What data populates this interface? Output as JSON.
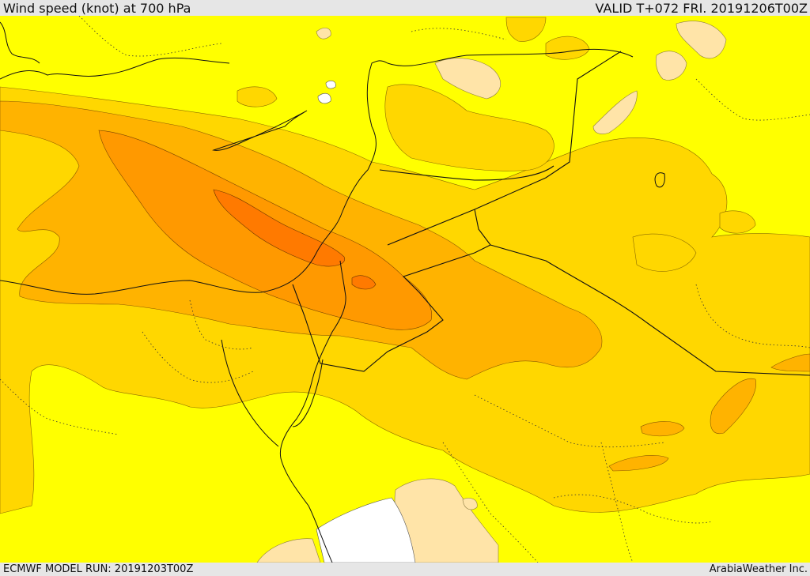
{
  "header": {
    "title": "Wind speed (knot) at 700 hPa",
    "valid": "VALID T+072 FRI. 20191206T00Z"
  },
  "footer": {
    "model_run": "ECMWF MODEL RUN: 20191203T00Z",
    "credit": "ArabiaWeather Inc."
  },
  "map": {
    "field": "wind speed",
    "level": "700 hPa",
    "colors": {
      "lowest": "#ffffff",
      "low": "#ffe4a8",
      "base": "#ffff00",
      "mid": "#ffd700",
      "high": "#ffb300",
      "higher": "#ff9900",
      "max": "#ff7a00"
    }
  }
}
